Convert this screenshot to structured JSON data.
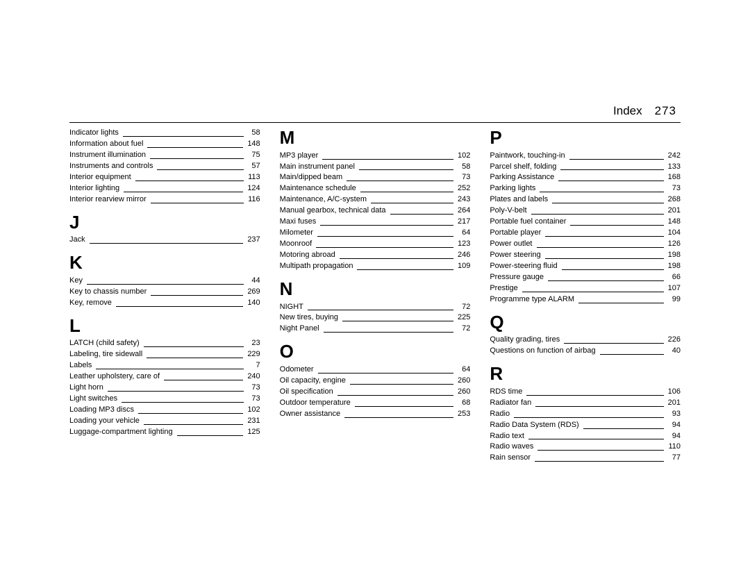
{
  "header": {
    "label": "Index",
    "page": "273"
  },
  "columns": [
    {
      "sections": [
        {
          "letter": "",
          "entries": [
            {
              "t": "Indicator lights",
              "p": "58"
            },
            {
              "t": "Information about fuel",
              "p": "148"
            },
            {
              "t": "Instrument illumination",
              "p": "75"
            },
            {
              "t": "Instruments and controls",
              "p": "57"
            },
            {
              "t": "Interior equipment",
              "p": "113"
            },
            {
              "t": "Interior lighting",
              "p": "124"
            },
            {
              "t": "Interior rearview mirror",
              "p": "116"
            }
          ]
        },
        {
          "letter": "J",
          "entries": [
            {
              "t": "Jack",
              "p": "237"
            }
          ]
        },
        {
          "letter": "K",
          "entries": [
            {
              "t": "Key",
              "p": "44"
            },
            {
              "t": "Key to chassis number",
              "p": "269"
            },
            {
              "t": "Key, remove",
              "p": "140"
            }
          ]
        },
        {
          "letter": "L",
          "entries": [
            {
              "t": "LATCH (child safety)",
              "p": "23"
            },
            {
              "t": "Labeling, tire sidewall",
              "p": "229"
            },
            {
              "t": "Labels",
              "p": "7"
            },
            {
              "t": "Leather upholstery, care of",
              "p": "240"
            },
            {
              "t": "Light horn",
              "p": "73"
            },
            {
              "t": "Light switches",
              "p": "73"
            },
            {
              "t": "Loading MP3 discs",
              "p": "102"
            },
            {
              "t": "Loading your vehicle",
              "p": "231"
            },
            {
              "t": "Luggage-compartment lighting",
              "p": "125"
            }
          ]
        }
      ]
    },
    {
      "sections": [
        {
          "letter": "M",
          "first": true,
          "entries": [
            {
              "t": "MP3 player",
              "p": "102"
            },
            {
              "t": "Main instrument panel",
              "p": "58"
            },
            {
              "t": "Main/dipped beam",
              "p": "73"
            },
            {
              "t": "Maintenance schedule",
              "p": "252"
            },
            {
              "t": "Maintenance, A/C-system",
              "p": "243"
            },
            {
              "t": "Manual gearbox, technical data",
              "p": "264"
            },
            {
              "t": "Maxi fuses",
              "p": "217"
            },
            {
              "t": "Milometer",
              "p": "64"
            },
            {
              "t": "Moonroof",
              "p": "123"
            },
            {
              "t": "Motoring abroad",
              "p": "246"
            },
            {
              "t": "Multipath propagation",
              "p": "109"
            }
          ]
        },
        {
          "letter": "N",
          "entries": [
            {
              "t": "NIGHT",
              "p": "72"
            },
            {
              "t": "New tires, buying",
              "p": "225"
            },
            {
              "t": "Night Panel",
              "p": "72"
            }
          ]
        },
        {
          "letter": "O",
          "entries": [
            {
              "t": "Odometer",
              "p": "64"
            },
            {
              "t": "Oil capacity, engine",
              "p": "260"
            },
            {
              "t": "Oil specification",
              "p": "260"
            },
            {
              "t": "Outdoor temperature",
              "p": "68"
            },
            {
              "t": "Owner assistance",
              "p": "253"
            }
          ]
        }
      ]
    },
    {
      "sections": [
        {
          "letter": "P",
          "first": true,
          "entries": [
            {
              "t": "Paintwork, touching-in",
              "p": "242"
            },
            {
              "t": "Parcel shelf, folding",
              "p": "133"
            },
            {
              "t": "Parking Assistance",
              "p": "168"
            },
            {
              "t": "Parking lights",
              "p": "73"
            },
            {
              "t": "Plates and labels",
              "p": "268"
            },
            {
              "t": "Poly-V-belt",
              "p": "201"
            },
            {
              "t": "Portable fuel container",
              "p": "148"
            },
            {
              "t": "Portable player",
              "p": "104"
            },
            {
              "t": "Power outlet",
              "p": "126"
            },
            {
              "t": "Power steering",
              "p": "198"
            },
            {
              "t": "Power-steering fluid",
              "p": "198"
            },
            {
              "t": "Pressure gauge",
              "p": "66"
            },
            {
              "t": "Prestige",
              "p": "107"
            },
            {
              "t": "Programme type ALARM",
              "p": "99"
            }
          ]
        },
        {
          "letter": "Q",
          "entries": [
            {
              "t": "Quality grading, tires",
              "p": "226"
            },
            {
              "t": "Questions on function of airbag",
              "p": "40"
            }
          ]
        },
        {
          "letter": "R",
          "entries": [
            {
              "t": "RDS time",
              "p": "106"
            },
            {
              "t": "Radiator fan",
              "p": "201"
            },
            {
              "t": "Radio",
              "p": "93"
            },
            {
              "t": "Radio Data System (RDS)",
              "p": "94"
            },
            {
              "t": "Radio text",
              "p": "94"
            },
            {
              "t": "Radio waves",
              "p": "110"
            },
            {
              "t": "Rain sensor",
              "p": "77"
            }
          ]
        }
      ]
    }
  ]
}
